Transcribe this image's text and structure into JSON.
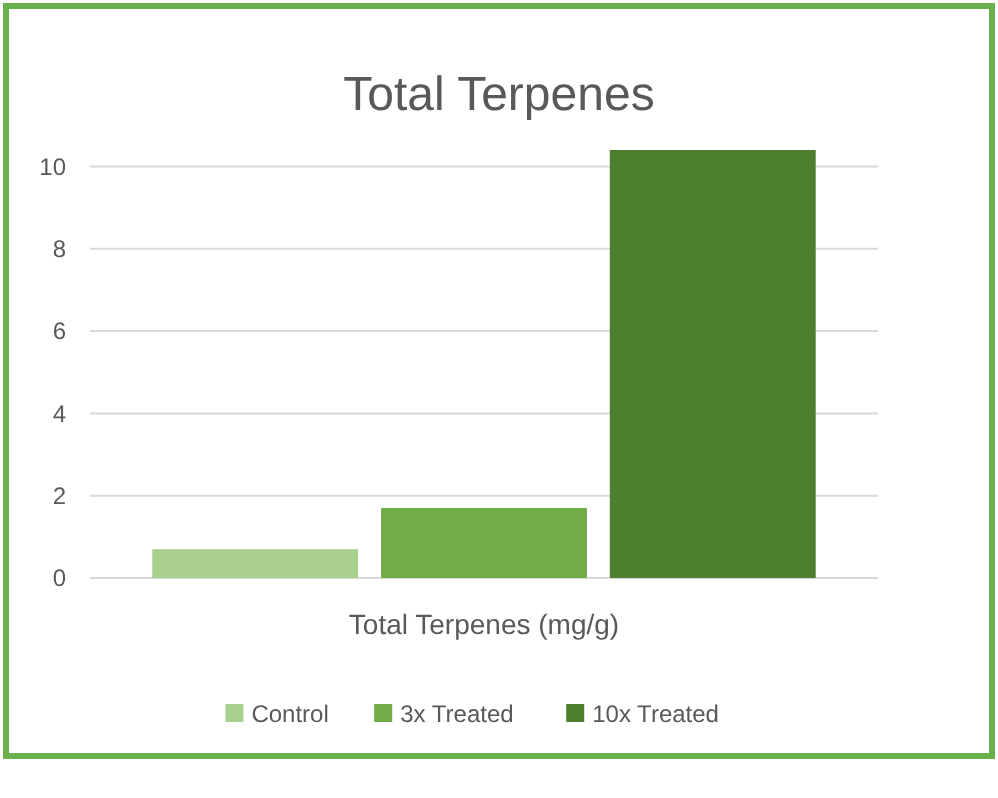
{
  "chart_data": {
    "type": "bar",
    "title": "Total Terpenes",
    "xlabel": "Total Terpenes (mg/g)",
    "categories": [
      null
    ],
    "series": [
      {
        "name": "Control",
        "color": "#a9d18e",
        "values": [
          0.7
        ]
      },
      {
        "name": "3x Treated",
        "color": "#70ad47",
        "values": [
          1.7
        ]
      },
      {
        "name": "10x Treated",
        "color": "#4e7f2f",
        "values": [
          10.4
        ]
      }
    ],
    "ylim": [
      0,
      10.4
    ],
    "yticks": [
      0,
      2,
      4,
      6,
      8,
      10
    ],
    "grid": "y",
    "legend": "bottom"
  }
}
